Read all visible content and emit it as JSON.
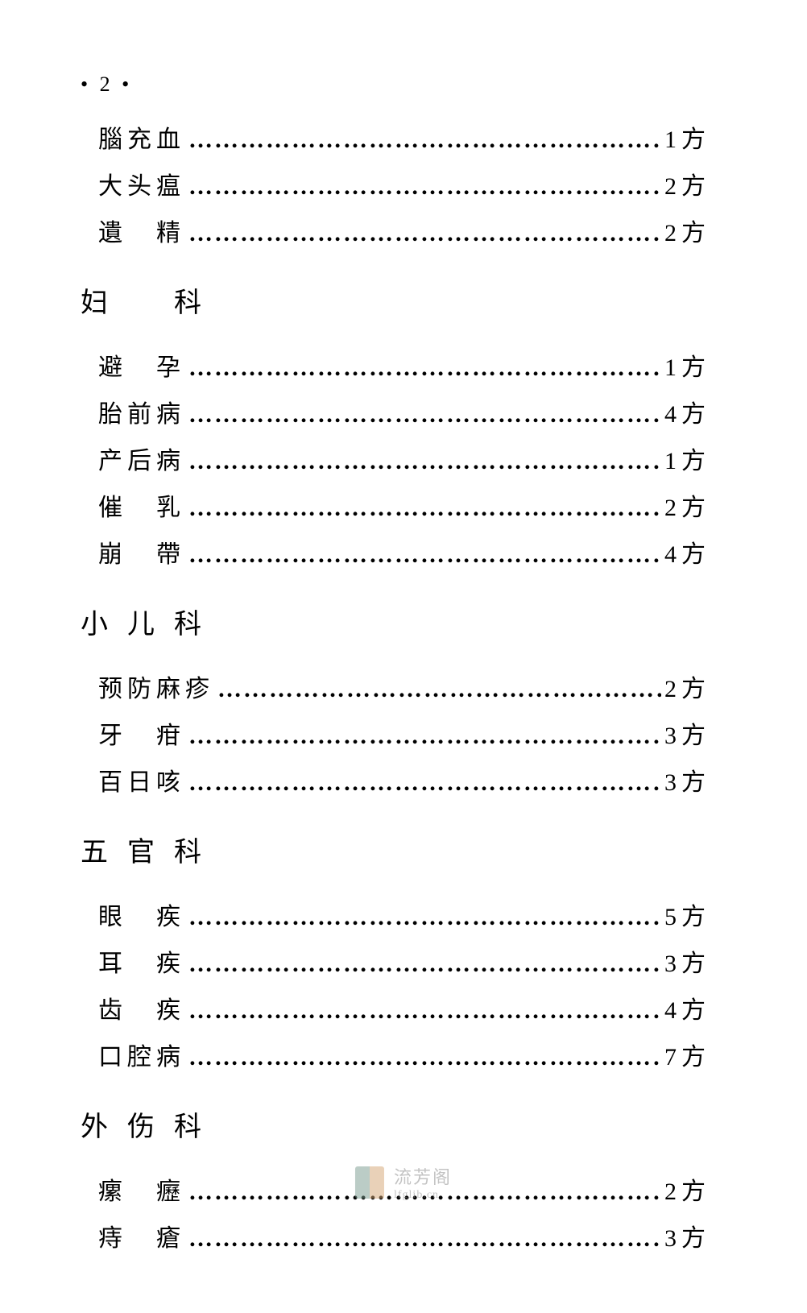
{
  "page": {
    "number": "• 2 •",
    "background_color": "#ffffff",
    "text_color": "#000000",
    "font_family": "SimSun",
    "body_fontsize": 30,
    "heading_fontsize": 34
  },
  "initial_entries": [
    {
      "term": "腦充血",
      "count": "1方",
      "spaced": false
    },
    {
      "term": "大头瘟",
      "count": "2方",
      "spaced": false
    },
    {
      "term": "遺　精",
      "count": "2方",
      "spaced": false
    }
  ],
  "sections": [
    {
      "heading": "妇　科",
      "entries": [
        {
          "term": "避　孕",
          "count": "1方",
          "spaced": false
        },
        {
          "term": "胎前病",
          "count": "4方",
          "spaced": false
        },
        {
          "term": "产后病",
          "count": "1方",
          "spaced": false
        },
        {
          "term": "催　乳",
          "count": "2方",
          "spaced": false
        },
        {
          "term": "崩　帶",
          "count": "4方",
          "spaced": false
        }
      ]
    },
    {
      "heading": "小儿科",
      "entries": [
        {
          "term": "预防麻疹",
          "count": "2方",
          "spaced": false
        },
        {
          "term": "牙　疳",
          "count": "3方",
          "spaced": false
        },
        {
          "term": "百日咳",
          "count": "3方",
          "spaced": false
        }
      ]
    },
    {
      "heading": "五官科",
      "entries": [
        {
          "term": "眼　疾",
          "count": "5方",
          "spaced": false
        },
        {
          "term": "耳　疾",
          "count": "3方",
          "spaced": false
        },
        {
          "term": "齿　疾",
          "count": "4方",
          "spaced": false
        },
        {
          "term": "口腔病",
          "count": "7方",
          "spaced": false
        }
      ]
    },
    {
      "heading": "外伤科",
      "entries": [
        {
          "term": "瘰　癧",
          "count": "2方",
          "spaced": false
        },
        {
          "term": "痔　瘡",
          "count": "3方",
          "spaced": false
        }
      ]
    }
  ],
  "dots_pattern": "…………………………………………………",
  "watermark": {
    "main": "流芳阁",
    "sub": "lfglib.cn",
    "icon_colors": [
      "#7a9b8e",
      "#d4a574"
    ],
    "text_color": "#888888"
  }
}
